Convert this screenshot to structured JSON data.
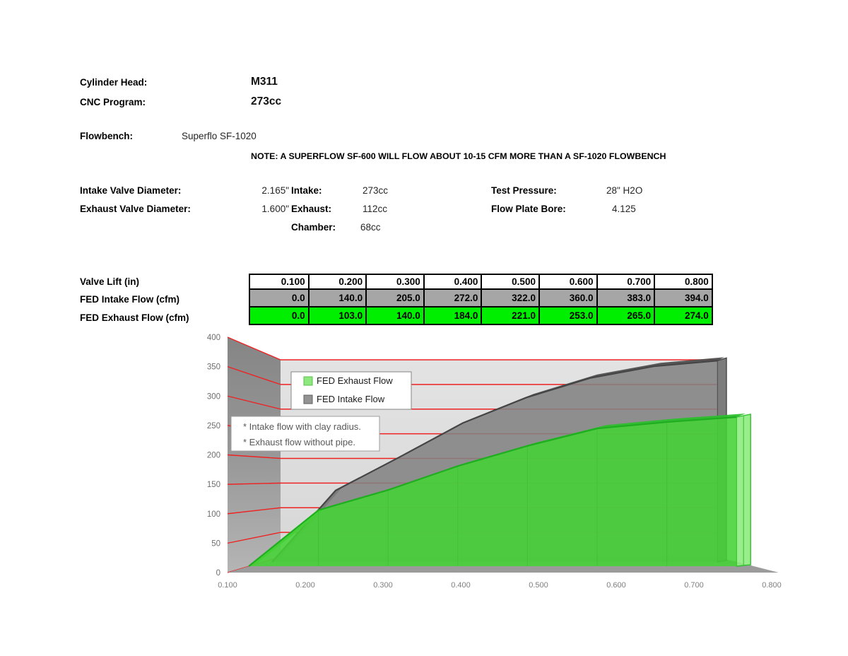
{
  "header": {
    "cylinder_head_label": "Cylinder Head:",
    "cylinder_head_value": "M311",
    "cnc_label": "CNC Program:",
    "cnc_value": "273cc",
    "flowbench_label": "Flowbench:",
    "flowbench_value": "Superflo SF-1020",
    "note": "NOTE: A SUPERFLOW SF-600 WILL FLOW ABOUT 10-15 CFM MORE THAN A SF-1020 FLOWBENCH",
    "intake_valve_label": "Intake Valve Diameter:",
    "intake_valve_value": "2.165\"",
    "exhaust_valve_label": "Exhaust Valve Diameter:",
    "exhaust_valve_value": "1.600\"",
    "intake_label": "Intake:",
    "intake_value": "273cc",
    "exhaust_label": "Exhaust:",
    "exhaust_value": "112cc",
    "chamber_label": "Chamber:",
    "chamber_value": "68cc",
    "test_pressure_label": "Test Pressure:",
    "test_pressure_value": "28\" H2O",
    "flow_plate_label": "Flow Plate Bore:",
    "flow_plate_value": "4.125"
  },
  "flow_table": {
    "row_labels": [
      "Valve Lift (in)",
      "FED Intake Flow (cfm)",
      "FED Exhaust Flow (cfm)"
    ],
    "lift": [
      "0.100",
      "0.200",
      "0.300",
      "0.400",
      "0.500",
      "0.600",
      "0.700",
      "0.800"
    ],
    "intake": [
      "0.0",
      "140.0",
      "205.0",
      "272.0",
      "322.0",
      "360.0",
      "383.0",
      "394.0"
    ],
    "exhaust": [
      "0.0",
      "103.0",
      "140.0",
      "184.0",
      "221.0",
      "253.0",
      "265.0",
      "274.0"
    ],
    "intake_row_color": "#a6a6a6",
    "exhaust_row_color": "#00ee00"
  },
  "chart_data": {
    "type": "area",
    "style": "3d-area",
    "title": "",
    "xlabel": "",
    "ylabel": "",
    "categories": [
      "0.100",
      "0.200",
      "0.300",
      "0.400",
      "0.500",
      "0.600",
      "0.700",
      "0.800"
    ],
    "series": [
      {
        "name": "FED Exhaust Flow",
        "values": [
          0,
          103,
          140,
          184,
          221,
          253,
          265,
          274
        ],
        "color": "#45d336"
      },
      {
        "name": "FED Intake Flow",
        "values": [
          0,
          140,
          205,
          272,
          322,
          360,
          383,
          394
        ],
        "color": "#828282"
      }
    ],
    "ylim": [
      0,
      400
    ],
    "ytick_step": 50,
    "grid": true,
    "gridline_color": "#ee2222",
    "legend": {
      "position": "top-left",
      "entries": [
        "FED Exhaust Flow",
        "FED Intake Flow"
      ],
      "swatch_colors": [
        "#8de97d",
        "#939393"
      ]
    },
    "annotations": [
      "* Intake flow with clay radius.",
      "* Exhaust flow without pipe."
    ]
  }
}
